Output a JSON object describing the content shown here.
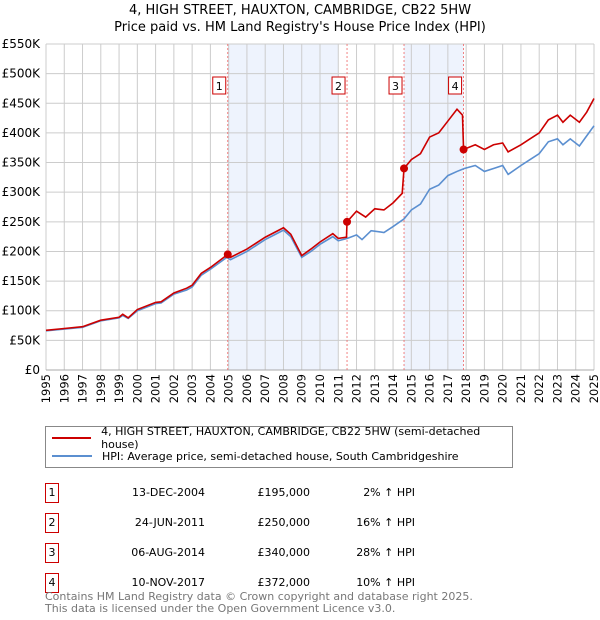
{
  "title": "4, HIGH STREET, HAUXTON, CAMBRIDGE, CB22 5HW",
  "subtitle": "Price paid vs. HM Land Registry's House Price Index (HPI)",
  "chart_data": {
    "type": "line",
    "xlim": [
      1995,
      2025
    ],
    "ylim": [
      0,
      550000
    ],
    "y_ticks": [
      {
        "v": 0,
        "l": "£0"
      },
      {
        "v": 50000,
        "l": "£50K"
      },
      {
        "v": 100000,
        "l": "£100K"
      },
      {
        "v": 150000,
        "l": "£150K"
      },
      {
        "v": 200000,
        "l": "£200K"
      },
      {
        "v": 250000,
        "l": "£250K"
      },
      {
        "v": 300000,
        "l": "£300K"
      },
      {
        "v": 350000,
        "l": "£350K"
      },
      {
        "v": 400000,
        "l": "£400K"
      },
      {
        "v": 450000,
        "l": "£450K"
      },
      {
        "v": 500000,
        "l": "£500K"
      },
      {
        "v": 550000,
        "l": "£550K"
      }
    ],
    "x_ticks": [
      "1995",
      "1996",
      "1997",
      "1998",
      "1999",
      "2000",
      "2001",
      "2002",
      "2003",
      "2004",
      "2005",
      "2006",
      "2007",
      "2008",
      "2009",
      "2010",
      "2011",
      "2012",
      "2013",
      "2014",
      "2015",
      "2016",
      "2017",
      "2018",
      "2019",
      "2020",
      "2021",
      "2022",
      "2023",
      "2024",
      "2025"
    ],
    "shaded_ranges": [
      [
        2004.95,
        2011.0
      ],
      [
        2014.6,
        2017.86
      ]
    ],
    "series": [
      {
        "name": "4, HIGH STREET, HAUXTON, CAMBRIDGE, CB22 5HW (semi-detached house)",
        "color": "#cc0000",
        "points": [
          [
            1995,
            67
          ],
          [
            1996,
            70
          ],
          [
            1997,
            73
          ],
          [
            1998,
            84
          ],
          [
            1999,
            89
          ],
          [
            1999.2,
            94
          ],
          [
            1999.5,
            88
          ],
          [
            2000,
            102
          ],
          [
            2001,
            114
          ],
          [
            2001.3,
            115
          ],
          [
            2002,
            130
          ],
          [
            2002.7,
            138
          ],
          [
            2003,
            143
          ],
          [
            2003.5,
            163
          ],
          [
            2004,
            173
          ],
          [
            2004.95,
            195
          ],
          [
            2005.1,
            190
          ],
          [
            2006,
            204
          ],
          [
            2007,
            224
          ],
          [
            2007.5,
            232
          ],
          [
            2008,
            240
          ],
          [
            2008.4,
            229
          ],
          [
            2009,
            193
          ],
          [
            2009.5,
            204
          ],
          [
            2010,
            216
          ],
          [
            2010.7,
            230
          ],
          [
            2011,
            222
          ],
          [
            2011.45,
            224
          ],
          [
            2011.48,
            250
          ],
          [
            2012,
            268
          ],
          [
            2012.5,
            258
          ],
          [
            2013,
            272
          ],
          [
            2013.5,
            270
          ],
          [
            2014,
            282
          ],
          [
            2014.5,
            298
          ],
          [
            2014.6,
            340
          ],
          [
            2015,
            355
          ],
          [
            2015.5,
            365
          ],
          [
            2016,
            393
          ],
          [
            2016.5,
            400
          ],
          [
            2017,
            420
          ],
          [
            2017.5,
            440
          ],
          [
            2017.8,
            430
          ],
          [
            2017.86,
            372
          ],
          [
            2018.5,
            380
          ],
          [
            2019,
            372
          ],
          [
            2019.5,
            380
          ],
          [
            2020,
            383
          ],
          [
            2020.3,
            368
          ],
          [
            2021,
            380
          ],
          [
            2021.5,
            390
          ],
          [
            2022,
            400
          ],
          [
            2022.5,
            422
          ],
          [
            2023,
            430
          ],
          [
            2023.3,
            418
          ],
          [
            2023.7,
            430
          ],
          [
            2024.2,
            418
          ],
          [
            2024.6,
            435
          ],
          [
            2025,
            458
          ]
        ]
      },
      {
        "name": "HPI: Average price, semi-detached house, South Cambridgeshire",
        "color": "#5b8fd0",
        "points": [
          [
            1995,
            66
          ],
          [
            1996,
            69
          ],
          [
            1997,
            72
          ],
          [
            1998,
            83
          ],
          [
            1999,
            88
          ],
          [
            1999.2,
            92
          ],
          [
            1999.5,
            87
          ],
          [
            2000,
            100
          ],
          [
            2001,
            112
          ],
          [
            2001.3,
            113
          ],
          [
            2002,
            128
          ],
          [
            2002.7,
            135
          ],
          [
            2003,
            140
          ],
          [
            2003.5,
            160
          ],
          [
            2004,
            170
          ],
          [
            2004.9,
            190
          ],
          [
            2005.1,
            186
          ],
          [
            2006,
            200
          ],
          [
            2007,
            220
          ],
          [
            2007.5,
            228
          ],
          [
            2008,
            236
          ],
          [
            2008.4,
            225
          ],
          [
            2009,
            190
          ],
          [
            2009.5,
            200
          ],
          [
            2010,
            212
          ],
          [
            2010.7,
            225
          ],
          [
            2011,
            218
          ],
          [
            2011.5,
            222
          ],
          [
            2012,
            228
          ],
          [
            2012.3,
            220
          ],
          [
            2012.8,
            235
          ],
          [
            2013.5,
            232
          ],
          [
            2014,
            242
          ],
          [
            2014.6,
            255
          ],
          [
            2015,
            270
          ],
          [
            2015.5,
            280
          ],
          [
            2016,
            305
          ],
          [
            2016.5,
            312
          ],
          [
            2017,
            328
          ],
          [
            2017.5,
            335
          ],
          [
            2017.9,
            340
          ],
          [
            2018.5,
            345
          ],
          [
            2019,
            335
          ],
          [
            2019.5,
            340
          ],
          [
            2020,
            345
          ],
          [
            2020.3,
            330
          ],
          [
            2021,
            345
          ],
          [
            2021.5,
            355
          ],
          [
            2022,
            365
          ],
          [
            2022.5,
            385
          ],
          [
            2023,
            390
          ],
          [
            2023.3,
            380
          ],
          [
            2023.7,
            390
          ],
          [
            2024.2,
            378
          ],
          [
            2024.6,
            395
          ],
          [
            2025,
            412
          ]
        ]
      }
    ],
    "sales": [
      {
        "n": "1",
        "date": "13-DEC-2004",
        "x": 2004.95,
        "price": "£195,000",
        "value": 195000,
        "hpi": "2% ↑ HPI"
      },
      {
        "n": "2",
        "date": "24-JUN-2011",
        "x": 2011.48,
        "price": "£250,000",
        "value": 250000,
        "hpi": "16% ↑ HPI"
      },
      {
        "n": "3",
        "date": "06-AUG-2014",
        "x": 2014.6,
        "price": "£340,000",
        "value": 340000,
        "hpi": "28% ↑ HPI"
      },
      {
        "n": "4",
        "date": "10-NOV-2017",
        "x": 2017.86,
        "price": "£372,000",
        "value": 372000,
        "hpi": "10% ↑ HPI"
      }
    ]
  },
  "legend": {
    "property": "4, HIGH STREET, HAUXTON, CAMBRIDGE, CB22 5HW (semi-detached house)",
    "hpi": "HPI: Average price, semi-detached house, South Cambridgeshire"
  },
  "footer": {
    "line1": "Contains HM Land Registry data © Crown copyright and database right 2025.",
    "line2": "This data is licensed under the Open Government Licence v3.0."
  }
}
